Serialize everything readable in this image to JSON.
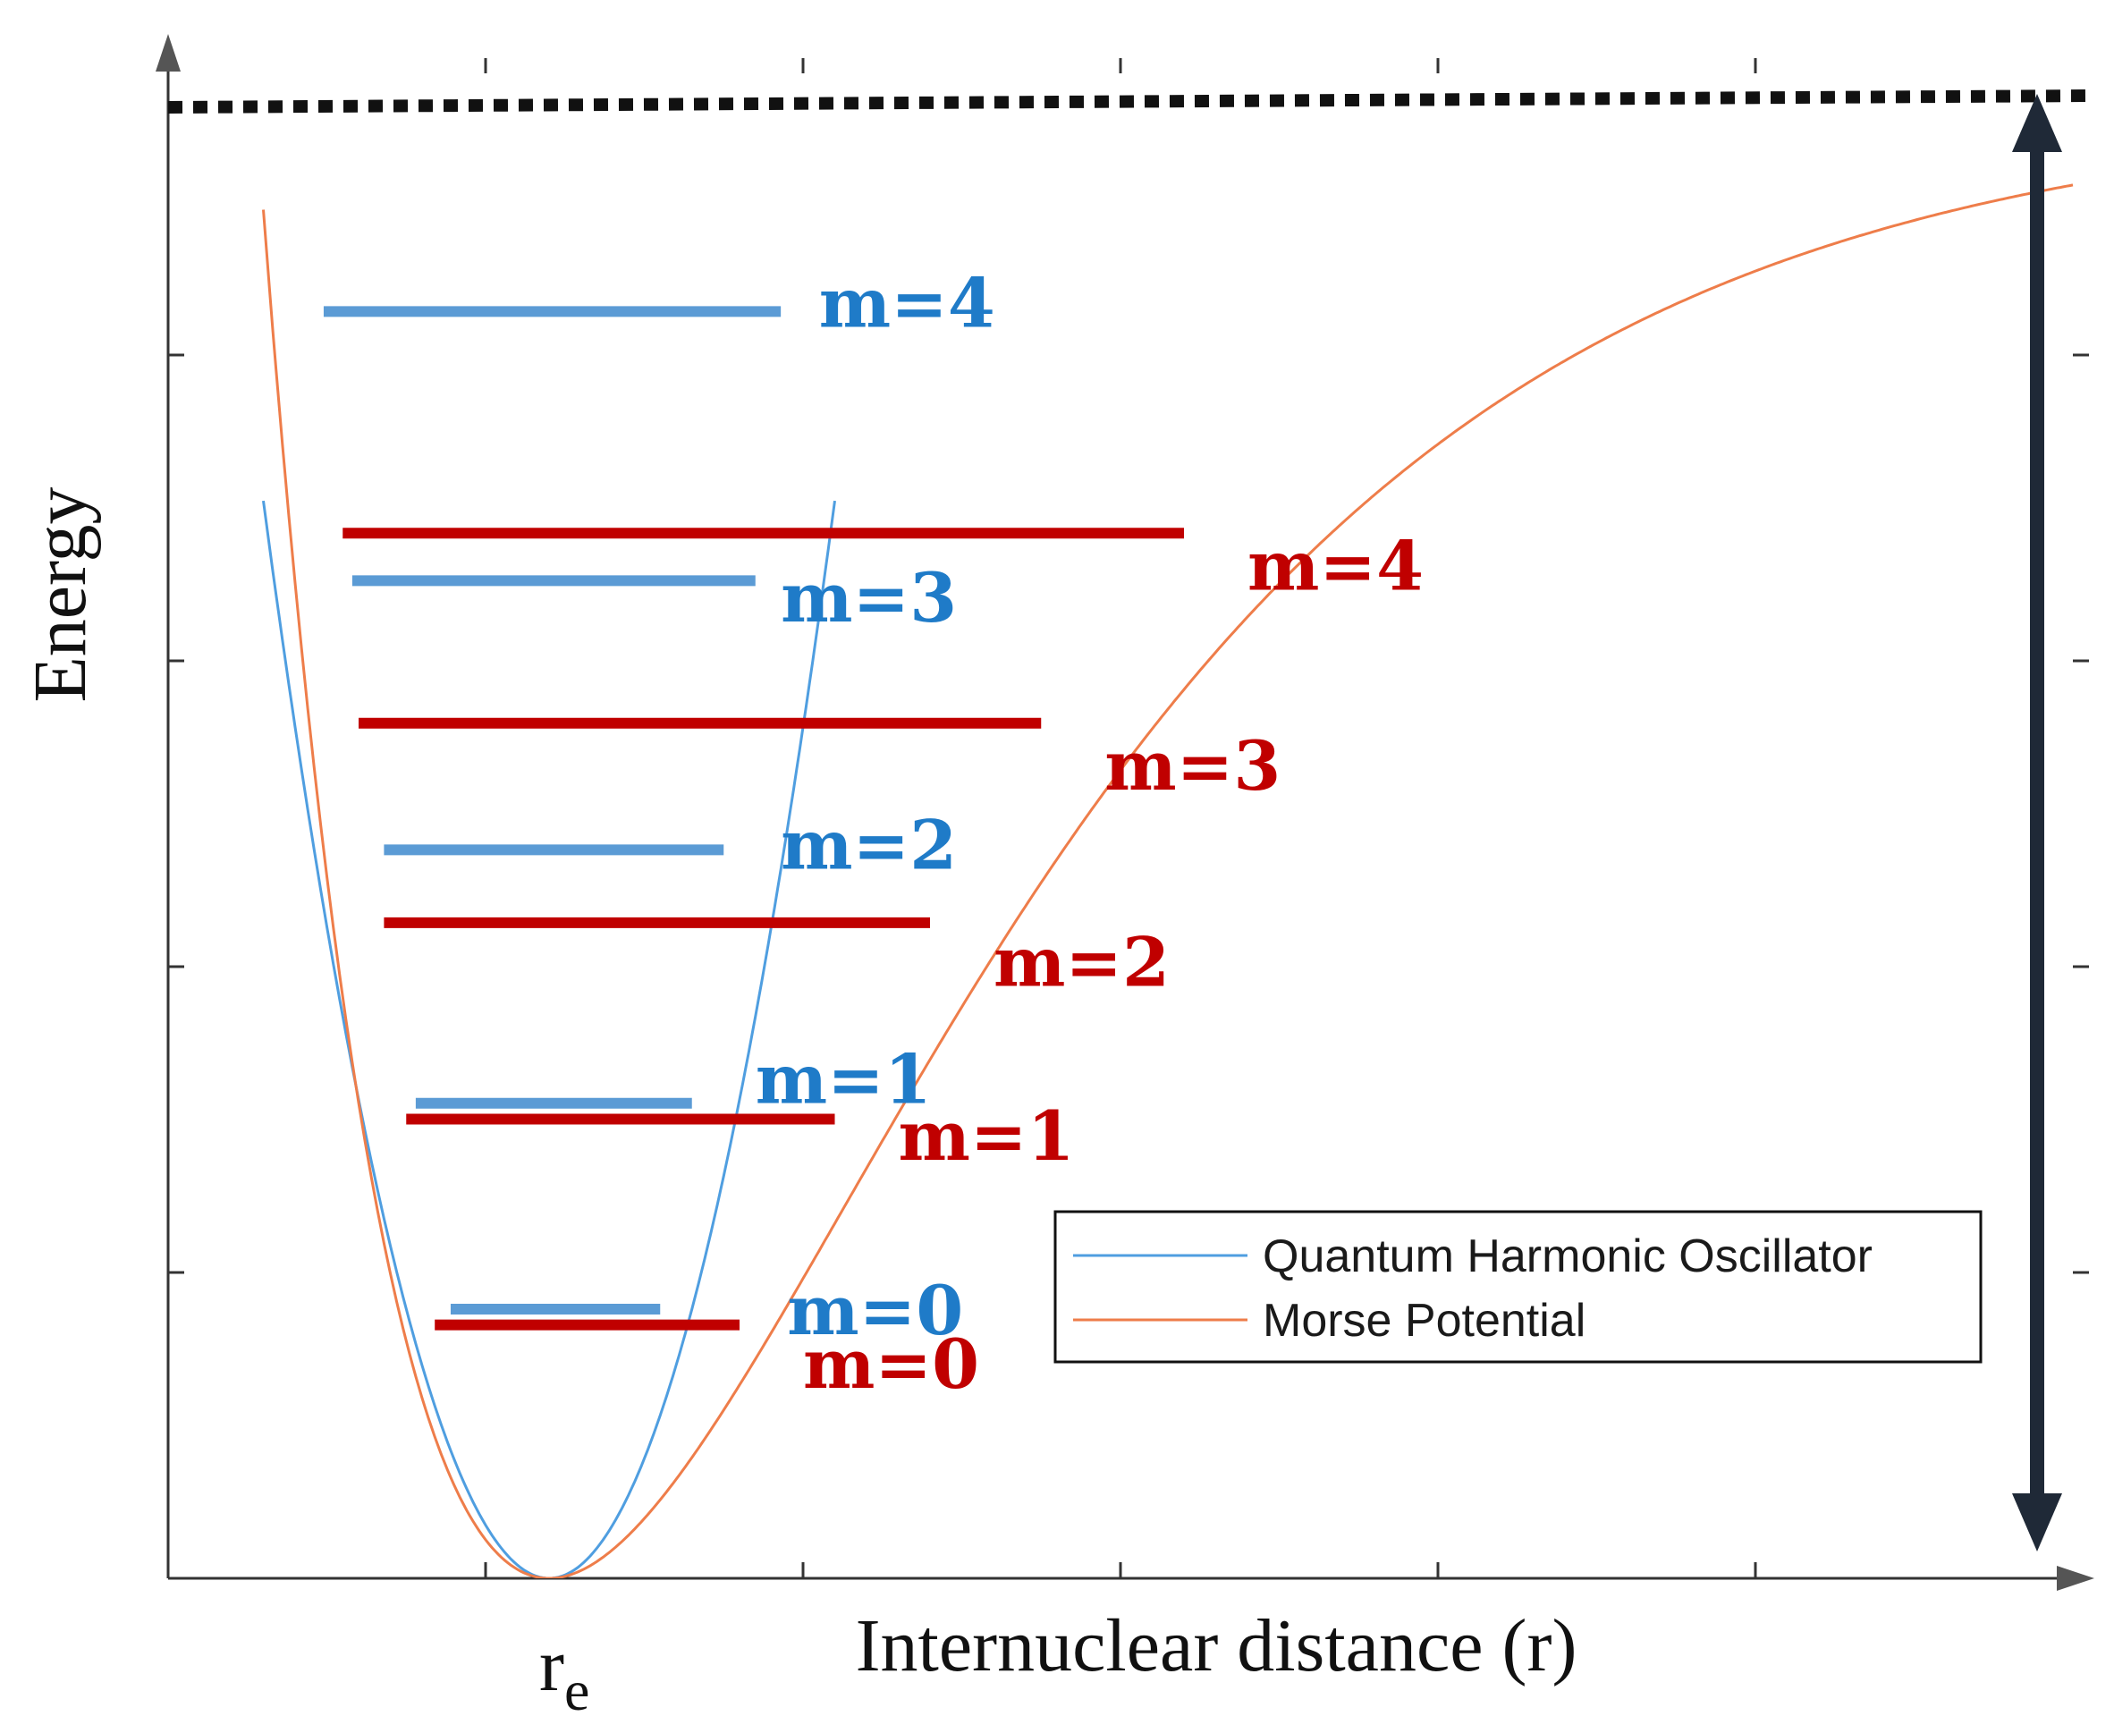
{
  "chart_data": {
    "type": "line",
    "title": "",
    "xlabel": "Internuclear distance (r)",
    "ylabel": "Energy",
    "x_annotation": "r",
    "x_annotation_subscript": "e",
    "xlim": [
      0,
      6
    ],
    "ylim": [
      0,
      4.8
    ],
    "re": 1.2,
    "dissociation_energy": 4.65,
    "legend_position": "bottom-right",
    "series": [
      {
        "name": "Quantum Harmonic Oscillator",
        "color": "#4f9ee0",
        "level_color": "#5b9bd5",
        "label_color": "#1f7bc8",
        "k": 4.2,
        "levels": [
          {
            "label": "m=0",
            "energy": 0.85,
            "x_left": 0.89,
            "x_right": 1.55
          },
          {
            "label": "m=1",
            "energy": 1.5,
            "x_left": 0.78,
            "x_right": 1.65
          },
          {
            "label": "m=2",
            "energy": 2.3,
            "x_left": 0.68,
            "x_right": 1.75
          },
          {
            "label": "m=3",
            "energy": 3.15,
            "x_left": 0.58,
            "x_right": 1.85
          },
          {
            "label": "m=4",
            "energy": 4.0,
            "x_left": 0.49,
            "x_right": 1.93
          }
        ]
      },
      {
        "name": "Morse Potential",
        "color": "#ee7d4a",
        "level_color": "#c00000",
        "label_color": "#c00000",
        "a": 0.75,
        "levels": [
          {
            "label": "m=0",
            "energy": 0.8,
            "x_left": 0.84,
            "x_right": 1.8
          },
          {
            "label": "m=1",
            "energy": 1.45,
            "x_left": 0.75,
            "x_right": 2.1
          },
          {
            "label": "m=2",
            "energy": 2.07,
            "x_left": 0.68,
            "x_right": 2.4
          },
          {
            "label": "m=3",
            "energy": 2.7,
            "x_left": 0.6,
            "x_right": 2.75
          },
          {
            "label": "m=4",
            "energy": 3.3,
            "x_left": 0.55,
            "x_right": 3.2
          }
        ]
      }
    ]
  }
}
